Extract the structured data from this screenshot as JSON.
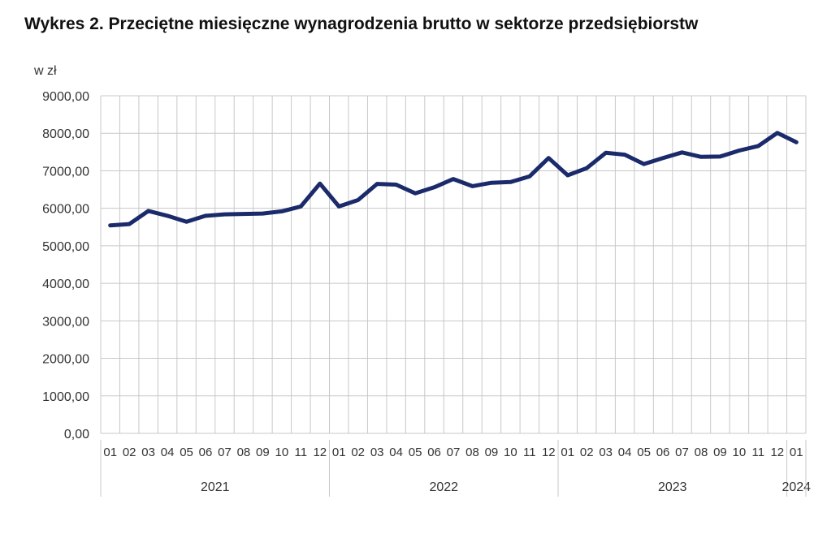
{
  "title": "Wykres 2. Przeciętne miesięczne wynagrodzenia brutto w sektorze przedsiębiorstw",
  "chart_data": {
    "type": "line",
    "title": "Wykres 2. Przeciętne miesięczne wynagrodzenia brutto w sektorze przedsiębiorstw",
    "unit_label": "w zł",
    "ylim": [
      0,
      9000
    ],
    "y_ticks": [
      "0,00",
      "1000,00",
      "2000,00",
      "3000,00",
      "4000,00",
      "5000,00",
      "6000,00",
      "7000,00",
      "8000,00",
      "9000,00"
    ],
    "grid": true,
    "line_color": "#1b2a6b",
    "categories": [
      "01",
      "02",
      "03",
      "04",
      "05",
      "06",
      "07",
      "08",
      "09",
      "10",
      "11",
      "12",
      "01",
      "02",
      "03",
      "04",
      "05",
      "06",
      "07",
      "08",
      "09",
      "10",
      "11",
      "12",
      "01",
      "02",
      "03",
      "04",
      "05",
      "06",
      "07",
      "08",
      "09",
      "10",
      "11",
      "12",
      "01"
    ],
    "years": [
      {
        "label": "2021",
        "start": 0,
        "count": 12
      },
      {
        "label": "2022",
        "start": 12,
        "count": 12
      },
      {
        "label": "2023",
        "start": 24,
        "count": 12
      },
      {
        "label": "2024",
        "start": 36,
        "count": 1
      }
    ],
    "series": [
      {
        "values": [
          5545,
          5580,
          5930,
          5800,
          5640,
          5800,
          5840,
          5850,
          5860,
          5920,
          6050,
          6660,
          6050,
          6220,
          6650,
          6630,
          6400,
          6560,
          6780,
          6590,
          6680,
          6700,
          6850,
          7340,
          6880,
          7070,
          7480,
          7430,
          7180,
          7340,
          7490,
          7370,
          7380,
          7540,
          7660,
          8010,
          7760
        ]
      }
    ]
  }
}
